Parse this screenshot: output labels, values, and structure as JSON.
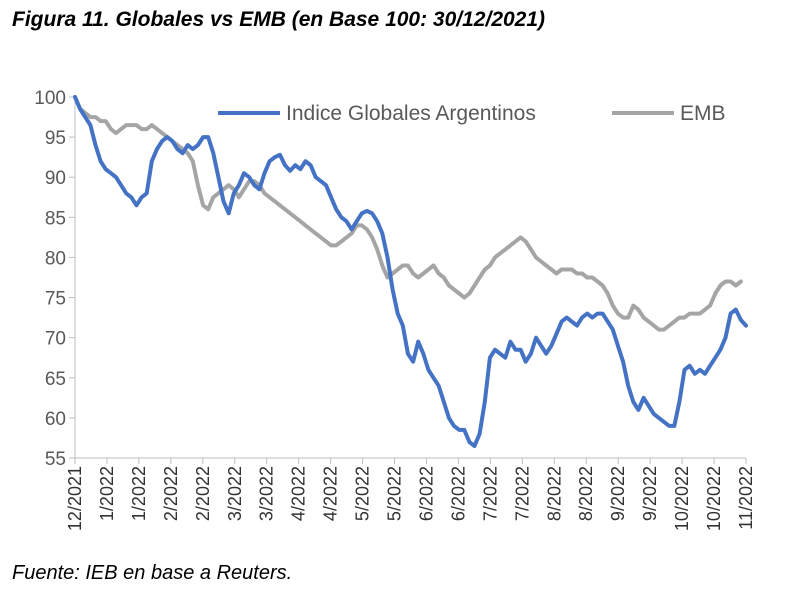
{
  "figure": {
    "title": "Figura 11. Globales vs EMB (en Base 100: 30/12/2021)",
    "source": "Fuente: IEB en base a Reuters."
  },
  "chart_data": {
    "type": "line",
    "title": "Figura 11. Globales vs EMB (en Base 100: 30/12/2021)",
    "xlabel": "",
    "ylabel": "",
    "ylim": [
      55,
      100
    ],
    "yticks": [
      55,
      60,
      65,
      70,
      75,
      80,
      85,
      90,
      95,
      100
    ],
    "x_start": "30/12/2021",
    "x_end": "30/11/2022",
    "points_per_month": 10,
    "x_tick_labels": [
      "12/2021",
      "1/2022",
      "1/2022",
      "2/2022",
      "2/2022",
      "3/2022",
      "3/2022",
      "4/2022",
      "4/2022",
      "5/2022",
      "5/2022",
      "6/2022",
      "6/2022",
      "7/2022",
      "7/2022",
      "8/2022",
      "8/2022",
      "9/2022",
      "9/2022",
      "10/2022",
      "10/2022",
      "11/2022"
    ],
    "legend_position": "top",
    "series": [
      {
        "name": "Indice Globales Argentinos",
        "color": "#4472C4",
        "values": [
          100,
          98.5,
          97.5,
          96.5,
          94,
          92,
          91,
          90.5,
          90,
          89,
          88,
          87.5,
          86.5,
          87.5,
          88,
          92,
          93.5,
          94.5,
          95,
          94.5,
          93.5,
          93,
          94,
          93.5,
          94,
          95,
          95,
          93,
          90,
          87,
          85.5,
          88,
          89,
          90.5,
          90,
          89,
          88.5,
          90.5,
          92,
          92.5,
          92.8,
          91.5,
          90.8,
          91.5,
          91,
          92,
          91.5,
          90,
          89.5,
          89,
          87.5,
          86,
          85,
          84.5,
          83.5,
          84.5,
          85.5,
          85.8,
          85.5,
          84.5,
          83,
          80,
          76,
          73,
          71.5,
          68,
          67,
          69.5,
          68,
          66,
          65,
          64,
          62,
          60,
          59,
          58.5,
          58.5,
          57,
          56.5,
          58,
          62,
          67.5,
          68.5,
          68,
          67.5,
          69.5,
          68.5,
          68.5,
          67,
          68,
          70,
          69,
          68,
          69,
          70.5,
          72,
          72.5,
          72,
          71.5,
          72.5,
          73,
          72.5,
          73,
          73,
          72,
          71,
          69,
          67,
          64,
          62,
          61,
          62.5,
          61.5,
          60.5,
          60,
          59.5,
          59,
          59,
          62,
          66,
          66.5,
          65.5,
          66,
          65.5,
          66.5,
          67.5,
          68.5,
          70,
          73,
          73.5,
          72.2,
          71.5
        ]
      },
      {
        "name": "EMB",
        "color": "#A5A5A5",
        "values": [
          100,
          98.5,
          98,
          97.5,
          97.5,
          97,
          97,
          96,
          95.5,
          96,
          96.5,
          96.5,
          96.5,
          96,
          96,
          96.5,
          96,
          95.5,
          95,
          94.5,
          94,
          93.5,
          93,
          92,
          89,
          86.5,
          86,
          87.5,
          88,
          88.5,
          89,
          88.5,
          87.5,
          88.5,
          89.5,
          89.5,
          89,
          88,
          87.5,
          87,
          86.5,
          86,
          85.5,
          85,
          84.5,
          84,
          83.5,
          83,
          82.5,
          82,
          81.5,
          81.5,
          82,
          82.5,
          83,
          84,
          84,
          83.5,
          82.5,
          81,
          79,
          77.5,
          78,
          78.5,
          79,
          79,
          78,
          77.5,
          78,
          78.5,
          79,
          78,
          77.5,
          76.5,
          76,
          75.5,
          75,
          75.5,
          76.5,
          77.5,
          78.5,
          79,
          80,
          80.5,
          81,
          81.5,
          82,
          82.5,
          82,
          81,
          80,
          79.5,
          79,
          78.5,
          78,
          78.5,
          78.5,
          78.5,
          78,
          78,
          77.5,
          77.5,
          77,
          76.5,
          75.5,
          74,
          73,
          72.5,
          72.5,
          74,
          73.5,
          72.5,
          72,
          71.5,
          71,
          71,
          71.5,
          72,
          72.5,
          72.5,
          73,
          73,
          73,
          73.5,
          74,
          75.5,
          76.5,
          77,
          77,
          76.5,
          77
        ]
      }
    ]
  }
}
